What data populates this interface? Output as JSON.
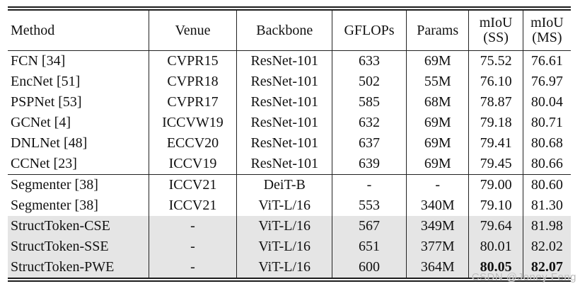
{
  "watermark": "CSDN @Joney Feng",
  "colors": {
    "highlight_row_bg": "#e5e5e5",
    "rule": "#1c1c1c",
    "watermark_text": "#bcbcbc"
  },
  "table": {
    "headers": [
      {
        "key": "method",
        "label": "Method"
      },
      {
        "key": "venue",
        "label": "Venue"
      },
      {
        "key": "backbone",
        "label": "Backbone"
      },
      {
        "key": "gflops",
        "label": "GFLOPs"
      },
      {
        "key": "params",
        "label": "Params"
      },
      {
        "key": "miou_ss",
        "label": "mIoU\n(SS)"
      },
      {
        "key": "miou_ms",
        "label": "mIoU\n(MS)"
      }
    ],
    "rows": [
      {
        "method": "FCN [34]",
        "venue": "CVPR15",
        "backbone": "ResNet-101",
        "gflops": "633",
        "params": "69M",
        "miou_ss": "75.52",
        "miou_ms": "76.61",
        "highlighted": false,
        "bold": [],
        "group_end": false
      },
      {
        "method": "EncNet [51]",
        "venue": "CVPR18",
        "backbone": "ResNet-101",
        "gflops": "502",
        "params": "55M",
        "miou_ss": "76.10",
        "miou_ms": "76.97",
        "highlighted": false,
        "bold": [],
        "group_end": false
      },
      {
        "method": "PSPNet [53]",
        "venue": "CVPR17",
        "backbone": "ResNet-101",
        "gflops": "585",
        "params": "68M",
        "miou_ss": "78.87",
        "miou_ms": "80.04",
        "highlighted": false,
        "bold": [],
        "group_end": false
      },
      {
        "method": "GCNet [4]",
        "venue": "ICCVW19",
        "backbone": "ResNet-101",
        "gflops": "632",
        "params": "69M",
        "miou_ss": "79.18",
        "miou_ms": "80.71",
        "highlighted": false,
        "bold": [],
        "group_end": false
      },
      {
        "method": "DNLNet [48]",
        "venue": "ECCV20",
        "backbone": "ResNet-101",
        "gflops": "637",
        "params": "69M",
        "miou_ss": "79.41",
        "miou_ms": "80.68",
        "highlighted": false,
        "bold": [],
        "group_end": false
      },
      {
        "method": "CCNet [23]",
        "venue": "ICCV19",
        "backbone": "ResNet-101",
        "gflops": "639",
        "params": "69M",
        "miou_ss": "79.45",
        "miou_ms": "80.66",
        "highlighted": false,
        "bold": [],
        "group_end": true
      },
      {
        "method": "Segmenter [38]",
        "venue": "ICCV21",
        "backbone": "DeiT-B",
        "gflops": "-",
        "params": "-",
        "miou_ss": "79.00",
        "miou_ms": "80.60",
        "highlighted": false,
        "bold": [],
        "group_end": false
      },
      {
        "method": "Segmenter [38]",
        "venue": "ICCV21",
        "backbone": "ViT-L/16",
        "gflops": "553",
        "params": "340M",
        "miou_ss": "79.10",
        "miou_ms": "81.30",
        "highlighted": false,
        "bold": [],
        "group_end": false
      },
      {
        "method": "StructToken-CSE",
        "venue": "-",
        "backbone": "ViT-L/16",
        "gflops": "567",
        "params": "349M",
        "miou_ss": "79.64",
        "miou_ms": "81.98",
        "highlighted": true,
        "bold": [],
        "group_end": false
      },
      {
        "method": "StructToken-SSE",
        "venue": "-",
        "backbone": "ViT-L/16",
        "gflops": "651",
        "params": "377M",
        "miou_ss": "80.01",
        "miou_ms": "82.02",
        "highlighted": true,
        "bold": [],
        "group_end": false
      },
      {
        "method": "StructToken-PWE",
        "venue": "-",
        "backbone": "ViT-L/16",
        "gflops": "600",
        "params": "364M",
        "miou_ss": "80.05",
        "miou_ms": "82.07",
        "highlighted": true,
        "bold": [
          "miou_ss",
          "miou_ms"
        ],
        "group_end": false
      }
    ]
  }
}
